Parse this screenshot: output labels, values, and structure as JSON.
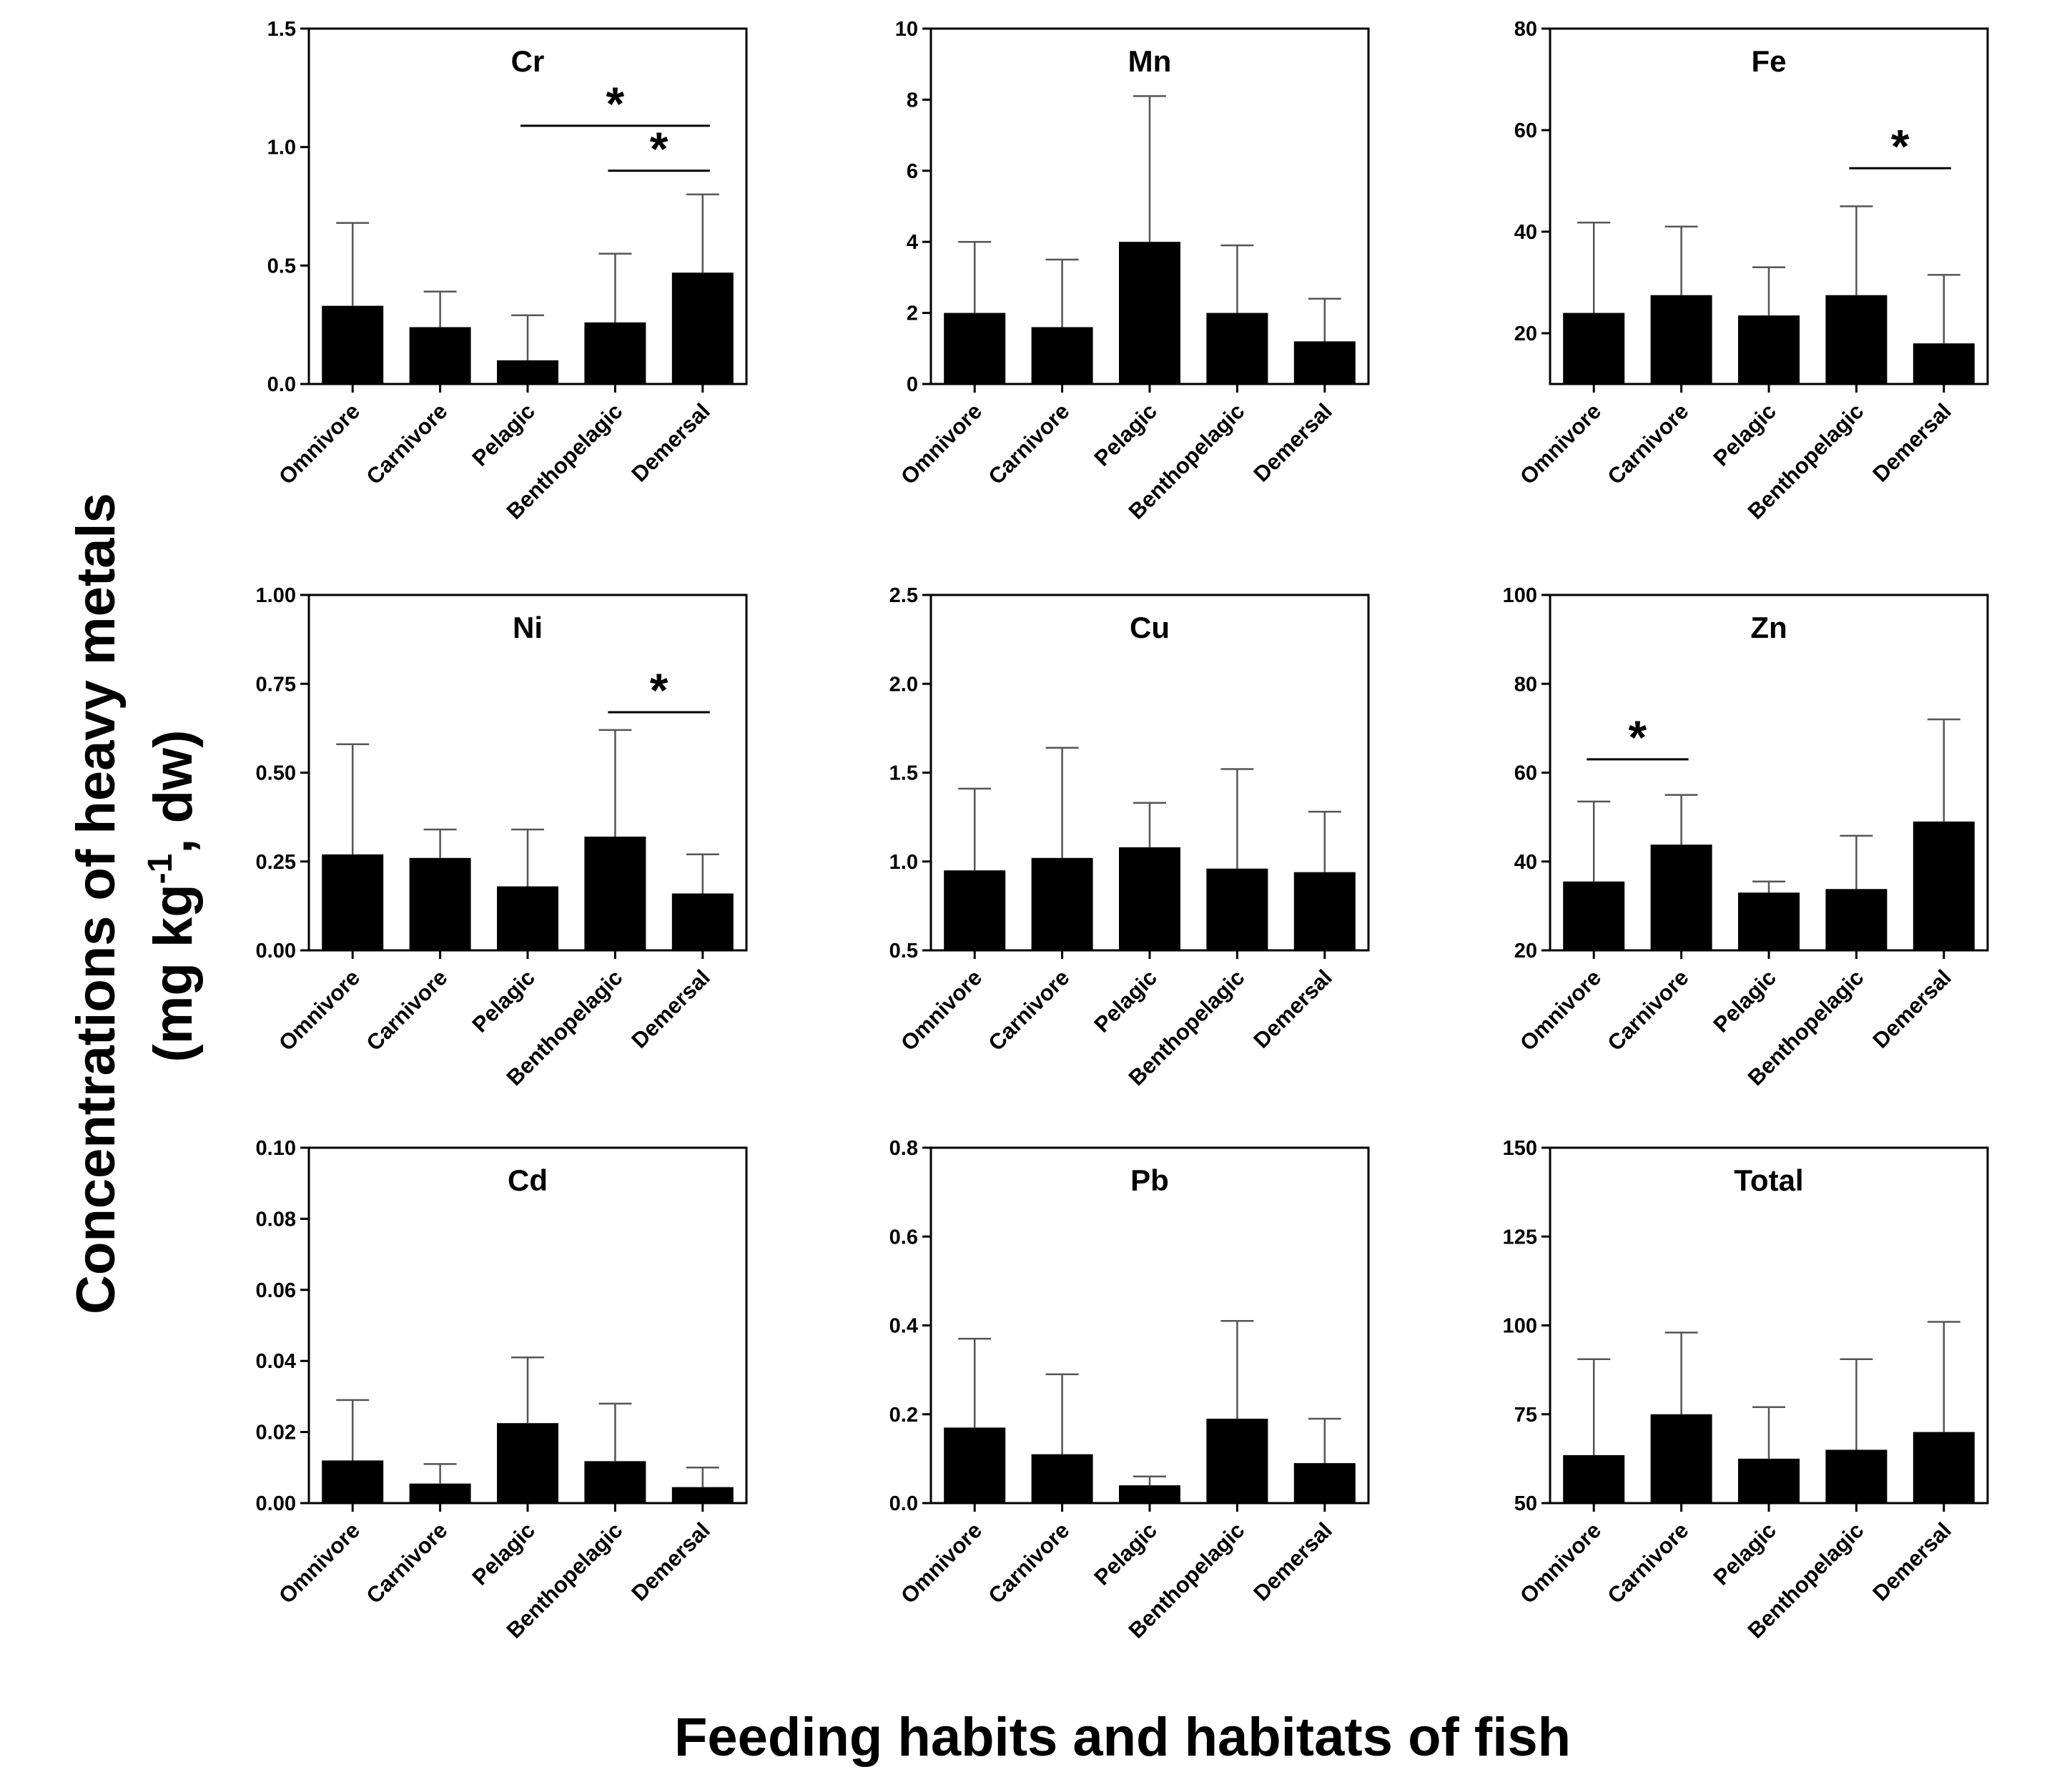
{
  "figure": {
    "y_axis_title_line1": "Concentrations of heavy metals",
    "y_axis_title_line2_prefix": "(mg kg",
    "y_axis_title_superscript": "-1",
    "y_axis_title_line2_suffix": ", dw)",
    "x_axis_title": "Feeding habits and habitats of fish",
    "colors": {
      "bar": "#000000",
      "errorbar": "#555555",
      "frame": "#000000",
      "background": "#ffffff"
    }
  },
  "chart_data": [
    {
      "type": "bar",
      "title": "Cr",
      "categories": [
        "Omnivore",
        "Carnivore",
        "Pelagic",
        "Benthopelagic",
        "Demersal"
      ],
      "values": [
        0.33,
        0.24,
        0.1,
        0.26,
        0.47
      ],
      "error_upper": [
        0.68,
        0.39,
        0.29,
        0.55,
        0.8
      ],
      "ylim": [
        0,
        1.5
      ],
      "yticks": [
        0.0,
        0.5,
        1.0,
        1.5
      ],
      "ytick_labels": [
        "0.0",
        "0.5",
        "1.0",
        "1.5"
      ],
      "significance": [
        {
          "from": "Pelagic",
          "to": "Demersal",
          "level": 1.09,
          "label": "*"
        },
        {
          "from": "Benthopelagic",
          "to": "Demersal",
          "level": 0.9,
          "label": "*"
        }
      ]
    },
    {
      "type": "bar",
      "title": "Mn",
      "categories": [
        "Omnivore",
        "Carnivore",
        "Pelagic",
        "Benthopelagic",
        "Demersal"
      ],
      "values": [
        2.0,
        1.6,
        4.0,
        2.0,
        1.2
      ],
      "error_upper": [
        4.0,
        3.5,
        8.1,
        3.9,
        2.4
      ],
      "ylim": [
        0,
        10
      ],
      "yticks": [
        0,
        2,
        4,
        6,
        8,
        10
      ],
      "ytick_labels": [
        "0",
        "2",
        "4",
        "6",
        "8",
        "10"
      ],
      "significance": []
    },
    {
      "type": "bar",
      "title": "Fe",
      "categories": [
        "Omnivore",
        "Carnivore",
        "Pelagic",
        "Benthopelagic",
        "Demersal"
      ],
      "values": [
        24,
        27.5,
        23.5,
        27.5,
        18
      ],
      "error_upper": [
        41.8,
        41,
        33,
        45,
        31.5
      ],
      "ylim": [
        10,
        80
      ],
      "yticks": [
        20,
        40,
        60,
        80
      ],
      "ytick_labels": [
        "20",
        "40",
        "60",
        "80"
      ],
      "significance": [
        {
          "from": "Benthopelagic",
          "to": "Demersal",
          "level": 52.5,
          "label": "*"
        }
      ]
    },
    {
      "type": "bar",
      "title": "Ni",
      "categories": [
        "Omnivore",
        "Carnivore",
        "Pelagic",
        "Benthopelagic",
        "Demersal"
      ],
      "values": [
        0.27,
        0.26,
        0.18,
        0.32,
        0.16
      ],
      "error_upper": [
        0.58,
        0.34,
        0.34,
        0.62,
        0.27
      ],
      "ylim": [
        0,
        1.0
      ],
      "yticks": [
        0,
        0.25,
        0.5,
        0.75,
        1.0
      ],
      "ytick_labels": [
        "0.00",
        "0.25",
        "0.50",
        "0.75",
        "1.00"
      ],
      "significance": [
        {
          "from": "Benthopelagic",
          "to": "Demersal",
          "level": 0.67,
          "label": "*"
        }
      ]
    },
    {
      "type": "bar",
      "title": "Cu",
      "categories": [
        "Omnivore",
        "Carnivore",
        "Pelagic",
        "Benthopelagic",
        "Demersal"
      ],
      "values": [
        0.95,
        1.02,
        1.08,
        0.96,
        0.94
      ],
      "error_upper": [
        1.41,
        1.64,
        1.33,
        1.52,
        1.28
      ],
      "ylim": [
        0.5,
        2.5
      ],
      "yticks": [
        0.5,
        1.0,
        1.5,
        2.0,
        2.5
      ],
      "ytick_labels": [
        "0.5",
        "1.0",
        "1.5",
        "2.0",
        "2.5"
      ],
      "significance": []
    },
    {
      "type": "bar",
      "title": "Zn",
      "categories": [
        "Omnivore",
        "Carnivore",
        "Pelagic",
        "Benthopelagic",
        "Demersal"
      ],
      "values": [
        35.5,
        43.8,
        33,
        33.8,
        49
      ],
      "error_upper": [
        53.5,
        55,
        35.5,
        45.8,
        72
      ],
      "ylim": [
        20,
        100
      ],
      "yticks": [
        20,
        40,
        60,
        80,
        100
      ],
      "ytick_labels": [
        "20",
        "40",
        "60",
        "80",
        "100"
      ],
      "significance": [
        {
          "from": "Omnivore",
          "to": "Carnivore",
          "level": 63,
          "label": "*"
        }
      ]
    },
    {
      "type": "bar",
      "title": "Cd",
      "categories": [
        "Omnivore",
        "Carnivore",
        "Pelagic",
        "Benthopelagic",
        "Demersal"
      ],
      "values": [
        0.012,
        0.0055,
        0.0225,
        0.0118,
        0.0045
      ],
      "error_upper": [
        0.029,
        0.011,
        0.041,
        0.028,
        0.01
      ],
      "ylim": [
        0,
        0.1
      ],
      "yticks": [
        0,
        0.02,
        0.04,
        0.06,
        0.08,
        0.1
      ],
      "ytick_labels": [
        "0.00",
        "0.02",
        "0.04",
        "0.06",
        "0.08",
        "0.10"
      ],
      "significance": []
    },
    {
      "type": "bar",
      "title": "Pb",
      "categories": [
        "Omnivore",
        "Carnivore",
        "Pelagic",
        "Benthopelagic",
        "Demersal"
      ],
      "values": [
        0.17,
        0.11,
        0.04,
        0.19,
        0.09
      ],
      "error_upper": [
        0.37,
        0.29,
        0.06,
        0.41,
        0.19
      ],
      "ylim": [
        0,
        0.8
      ],
      "yticks": [
        0,
        0.2,
        0.4,
        0.6,
        0.8
      ],
      "ytick_labels": [
        "0.0",
        "0.2",
        "0.4",
        "0.6",
        "0.8"
      ],
      "significance": []
    },
    {
      "type": "bar",
      "title": "Total",
      "categories": [
        "Omnivore",
        "Carnivore",
        "Pelagic",
        "Benthopelagic",
        "Demersal"
      ],
      "values": [
        63.5,
        75,
        62.5,
        65,
        70
      ],
      "error_upper": [
        90.5,
        98,
        77,
        90.5,
        101
      ],
      "ylim": [
        50,
        150
      ],
      "yticks": [
        50,
        75,
        100,
        125,
        150
      ],
      "ytick_labels": [
        "50",
        "75",
        "100",
        "125",
        "150"
      ],
      "significance": []
    }
  ]
}
